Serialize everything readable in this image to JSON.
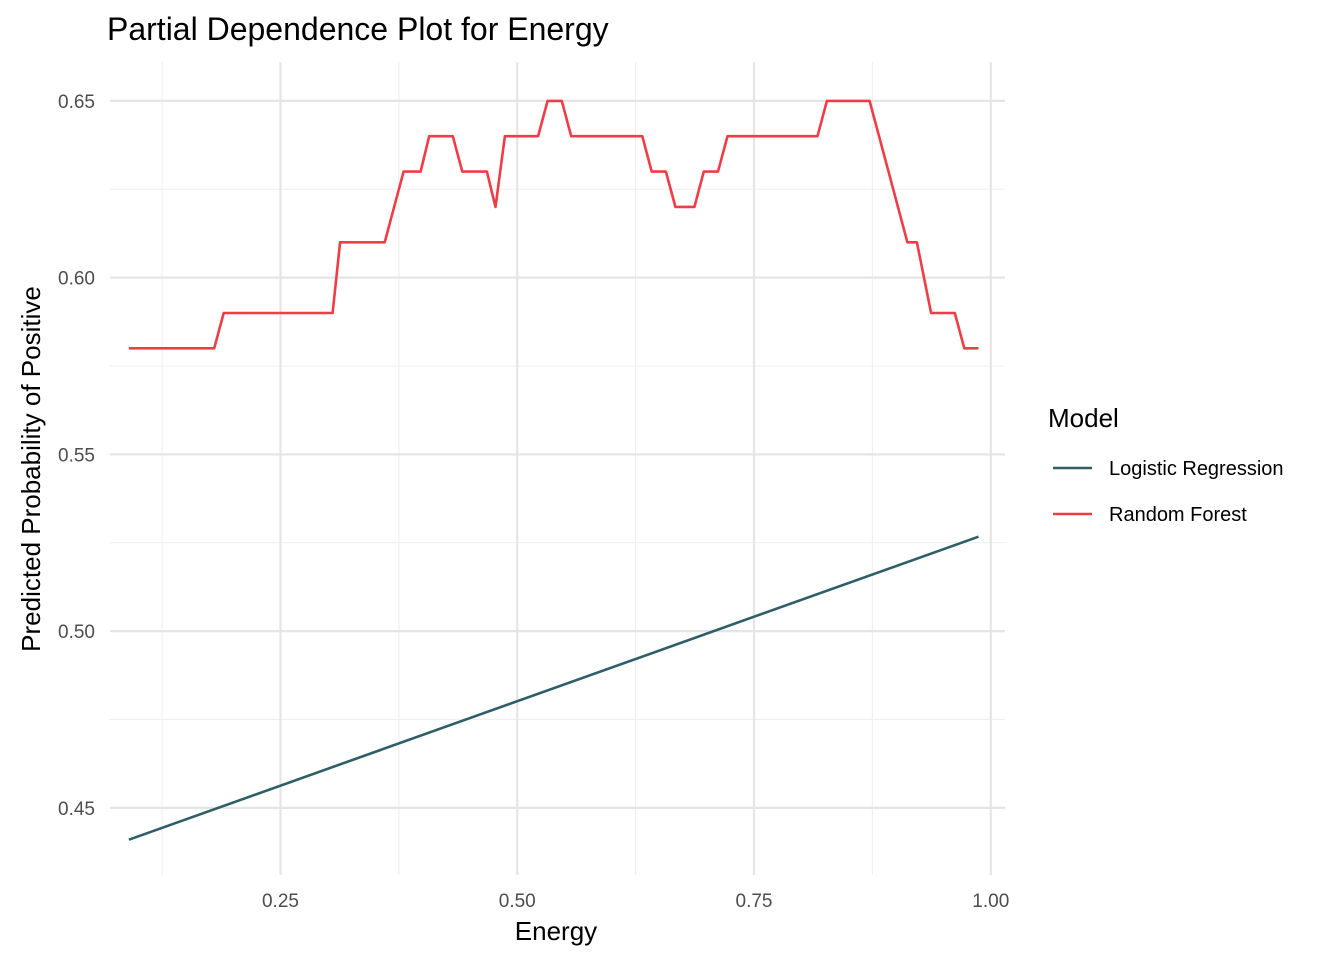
{
  "chart_data": {
    "type": "line",
    "title": "Partial Dependence Plot for Energy",
    "xlabel": "Energy",
    "ylabel": "Predicted Probability of Positive",
    "xlim": [
      0.07,
      1.015
    ],
    "ylim": [
      0.431,
      0.661
    ],
    "x_ticks": [
      {
        "value": 0.25,
        "label": "0.25"
      },
      {
        "value": 0.5,
        "label": "0.50"
      },
      {
        "value": 0.75,
        "label": "0.75"
      },
      {
        "value": 1.0,
        "label": "1.00"
      }
    ],
    "y_ticks": [
      {
        "value": 0.45,
        "label": "0.45"
      },
      {
        "value": 0.5,
        "label": "0.50"
      },
      {
        "value": 0.55,
        "label": "0.55"
      },
      {
        "value": 0.6,
        "label": "0.60"
      },
      {
        "value": 0.65,
        "label": "0.65"
      }
    ],
    "x_minor_ticks": [
      0.125,
      0.375,
      0.625,
      0.875
    ],
    "y_minor_ticks": [
      0.475,
      0.525,
      0.575,
      0.625
    ],
    "grid": true,
    "legend": {
      "title": "Model",
      "position": "right",
      "entries": [
        {
          "name": "Logistic Regression",
          "color": "#2f5f66"
        },
        {
          "name": "Random Forest",
          "color": "#f03c46"
        }
      ]
    },
    "series": [
      {
        "name": "Logistic Regression",
        "color": "#2f5f66",
        "x": [
          0.09,
          0.987
        ],
        "y": [
          0.441,
          0.5267
        ]
      },
      {
        "name": "Random Forest",
        "color": "#f03c46",
        "x": [
          0.09,
          0.18,
          0.19,
          0.305,
          0.313,
          0.36,
          0.38,
          0.398,
          0.407,
          0.432,
          0.442,
          0.468,
          0.477,
          0.487,
          0.522,
          0.532,
          0.547,
          0.557,
          0.632,
          0.642,
          0.657,
          0.667,
          0.687,
          0.697,
          0.712,
          0.722,
          0.817,
          0.827,
          0.872,
          0.912,
          0.922,
          0.937,
          0.962,
          0.972,
          0.987
        ],
        "y": [
          0.58,
          0.58,
          0.59,
          0.59,
          0.61,
          0.61,
          0.63,
          0.63,
          0.64,
          0.64,
          0.63,
          0.63,
          0.62,
          0.64,
          0.64,
          0.65,
          0.65,
          0.64,
          0.64,
          0.63,
          0.63,
          0.62,
          0.62,
          0.63,
          0.63,
          0.64,
          0.64,
          0.65,
          0.65,
          0.61,
          0.61,
          0.59,
          0.59,
          0.58,
          0.58
        ]
      }
    ]
  }
}
